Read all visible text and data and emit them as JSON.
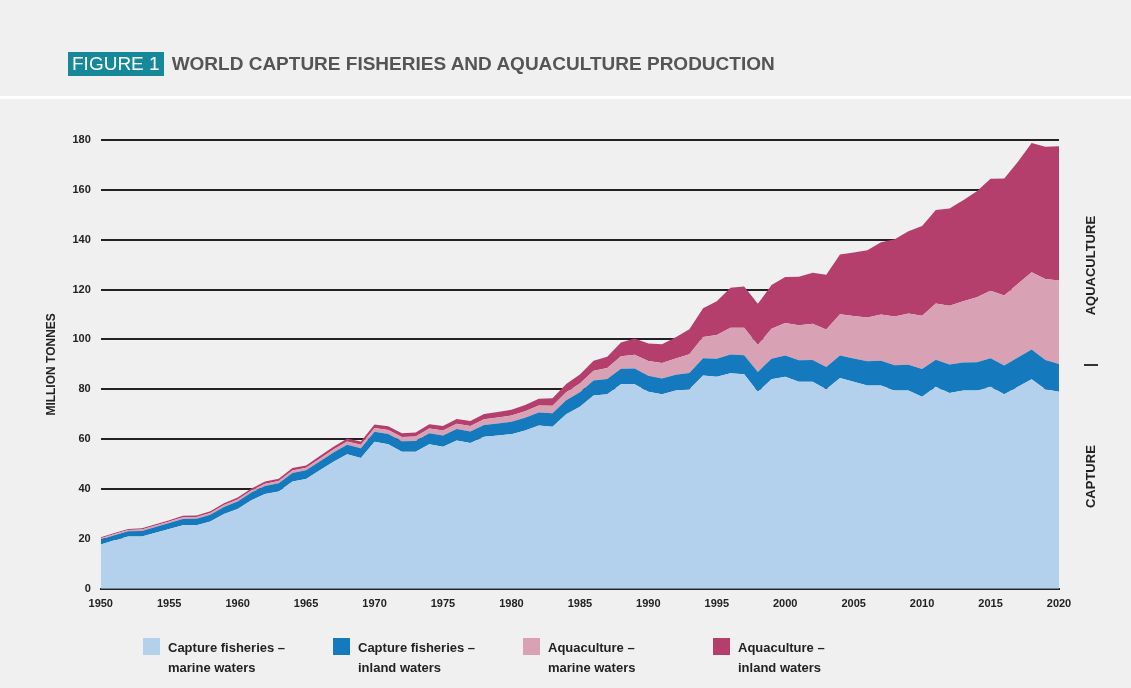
{
  "chart_data": {
    "type": "area",
    "title": "WORLD CAPTURE FISHERIES AND AQUACULTURE PRODUCTION",
    "ylabel": "MILLION TONNES",
    "annotations": [
      "FIGURE 1",
      "AQUACULTURE",
      "CAPTURE"
    ],
    "x": [
      1950,
      1951,
      1952,
      1953,
      1954,
      1955,
      1956,
      1957,
      1958,
      1959,
      1960,
      1961,
      1962,
      1963,
      1964,
      1965,
      1966,
      1967,
      1968,
      1969,
      1970,
      1971,
      1972,
      1973,
      1974,
      1975,
      1976,
      1977,
      1978,
      1979,
      1980,
      1981,
      1982,
      1983,
      1984,
      1985,
      1986,
      1987,
      1988,
      1989,
      1990,
      1991,
      1992,
      1993,
      1994,
      1995,
      1996,
      1997,
      1998,
      1999,
      2000,
      2001,
      2002,
      2003,
      2004,
      2005,
      2006,
      2007,
      2008,
      2009,
      2010,
      2011,
      2012,
      2013,
      2014,
      2015,
      2016,
      2017,
      2018,
      2019,
      2020
    ],
    "stacked": true,
    "series": [
      {
        "name": "Capture fisheries – marine waters",
        "color": "#b3d1ed",
        "values": [
          17.8,
          19.5,
          21,
          21,
          22.5,
          24,
          25.5,
          25.5,
          27,
          30,
          32,
          35.5,
          38,
          39,
          43,
          44,
          47.5,
          51,
          54,
          52.5,
          59,
          58,
          55,
          55,
          58,
          57,
          59.5,
          58.5,
          61,
          61.5,
          62,
          63.5,
          65.5,
          65,
          70,
          73,
          77.5,
          78,
          82,
          82,
          79,
          78,
          79.5,
          80,
          85.5,
          85,
          86.5,
          86,
          79,
          84,
          85,
          83,
          83,
          80,
          84.5,
          83,
          81.5,
          81.5,
          79.5,
          79.5,
          77,
          81,
          78.5,
          79.5,
          79.5,
          81,
          78,
          81,
          84,
          80,
          79
        ]
      },
      {
        "name": "Capture fisheries – inland waters",
        "color": "#1479bd",
        "values": [
          2,
          2,
          2.1,
          2.2,
          2.3,
          2.4,
          2.5,
          2.6,
          2.7,
          2.8,
          3,
          3.1,
          3.2,
          3.3,
          3.4,
          3.5,
          3.6,
          3.7,
          3.8,
          3.9,
          4,
          4.1,
          4.2,
          4.3,
          4.4,
          4.5,
          4.6,
          4.6,
          4.7,
          4.8,
          5,
          5.1,
          5.2,
          5.4,
          5.6,
          5.8,
          6,
          6.1,
          6.3,
          6.4,
          6.4,
          6.3,
          6.3,
          6.6,
          7,
          7.3,
          7.5,
          7.7,
          8,
          8.3,
          8.6,
          8.7,
          8.8,
          9,
          9.1,
          9.4,
          9.8,
          10,
          10.2,
          10.4,
          11.2,
          10.9,
          11.5,
          11.3,
          11.4,
          11.5,
          11.6,
          11.8,
          12,
          11.8,
          11.2
        ]
      },
      {
        "name": "Aquaculture – marine waters",
        "color": "#d8a2b4",
        "values": [
          0.5,
          0.5,
          0.5,
          0.6,
          0.6,
          0.6,
          0.7,
          0.7,
          0.7,
          0.8,
          0.8,
          0.8,
          0.9,
          0.9,
          1,
          1,
          1.1,
          1.2,
          1.3,
          1.4,
          1.5,
          1.6,
          1.7,
          1.8,
          1.9,
          2,
          2.1,
          2.2,
          2.3,
          2.4,
          2.5,
          2.6,
          2.8,
          3,
          3.2,
          3.5,
          4,
          4.5,
          5,
          5.5,
          6,
          6.3,
          6.6,
          7.5,
          8.5,
          9.5,
          10.7,
          11,
          10.8,
          12,
          13,
          14,
          14.5,
          15,
          16.5,
          17,
          17.5,
          18.5,
          19.5,
          20.5,
          21.3,
          22.5,
          23.5,
          24.5,
          26,
          27,
          28,
          29.5,
          31,
          32.5,
          33.5
        ]
      },
      {
        "name": "Aquaculture – inland waters",
        "color": "#b43f6d",
        "values": [
          0.4,
          0.4,
          0.4,
          0.5,
          0.5,
          0.5,
          0.6,
          0.6,
          0.7,
          0.7,
          0.8,
          0.8,
          0.9,
          0.9,
          1,
          1,
          1.1,
          1.1,
          1.2,
          1.3,
          1.4,
          1.5,
          1.5,
          1.6,
          1.7,
          1.8,
          1.9,
          2,
          2.1,
          2.2,
          2.3,
          2.5,
          2.7,
          3,
          3.3,
          3.6,
          4,
          4.5,
          5.5,
          6.5,
          7,
          7.5,
          8.5,
          10,
          11.5,
          13.5,
          16,
          16.5,
          16.5,
          17.5,
          18.5,
          19.5,
          20.5,
          22,
          24,
          25.5,
          27,
          29,
          31,
          33,
          36,
          37.5,
          39,
          40.5,
          42.5,
          45,
          47,
          49,
          51.8,
          53,
          53.8
        ]
      }
    ],
    "xlim": [
      1950,
      2020
    ],
    "xticks": [
      1950,
      1955,
      1960,
      1965,
      1970,
      1975,
      1980,
      1985,
      1990,
      1995,
      2000,
      2005,
      2010,
      2015,
      2020
    ],
    "ylim": [
      0,
      180
    ],
    "yticks": [
      0,
      20,
      40,
      60,
      80,
      100,
      120,
      140,
      160,
      180
    ],
    "grid": "y",
    "legend": "bottom"
  }
}
